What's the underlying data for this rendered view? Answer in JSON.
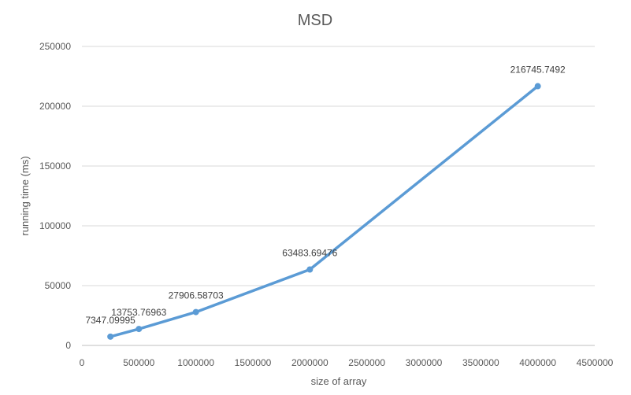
{
  "chart_data": {
    "type": "line",
    "title": "MSD",
    "xlabel": "size of array",
    "ylabel": "running time (ms)",
    "xlim": [
      0,
      4500000
    ],
    "ylim": [
      0,
      250000
    ],
    "x_ticks": [
      0,
      500000,
      1000000,
      1500000,
      2000000,
      2500000,
      3000000,
      3500000,
      4000000,
      4500000
    ],
    "x_tick_labels": [
      "0",
      "500000",
      "1000000",
      "1500000",
      "2000000",
      "2500000",
      "3000000",
      "3500000",
      "4000000",
      "4500000"
    ],
    "y_ticks": [
      0,
      50000,
      100000,
      150000,
      200000,
      250000
    ],
    "y_tick_labels": [
      "0",
      "50000",
      "100000",
      "150000",
      "200000",
      "250000"
    ],
    "grid": true,
    "series": [
      {
        "x": [
          250000,
          500000,
          1000000,
          2000000,
          4000000
        ],
        "values": [
          7347.09995,
          13753.76963,
          27906.58703,
          63483.69476,
          216745.7492
        ],
        "labels": [
          "7347.09995",
          "13753.76963",
          "27906.58703",
          "63483.69476",
          "216745.7492"
        ],
        "color": "#5b9bd5"
      }
    ]
  }
}
